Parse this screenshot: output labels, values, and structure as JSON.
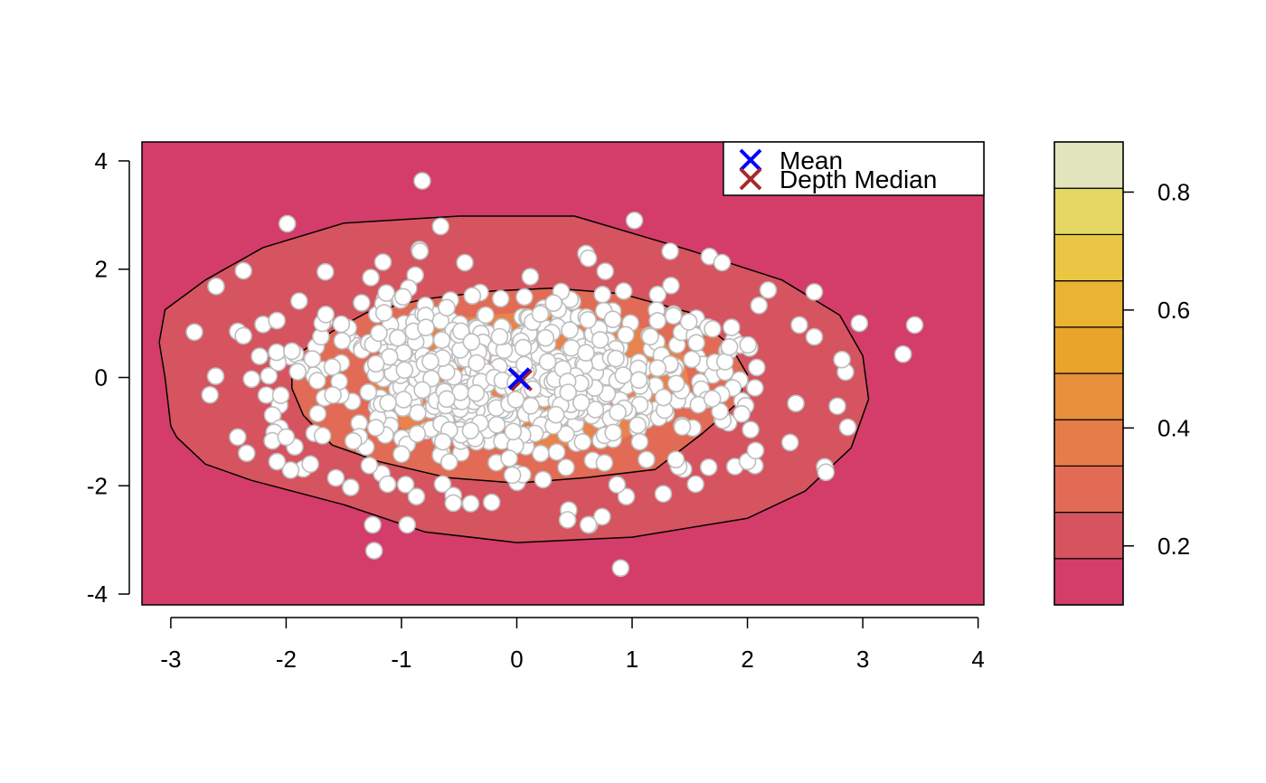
{
  "chart_data": {
    "type": "scatter",
    "title": "",
    "xlabel": "",
    "ylabel": "",
    "xlim": [
      -3.25,
      4.05
    ],
    "ylim": [
      -4.2,
      4.35
    ],
    "x_ticks": [
      -3,
      -2,
      -1,
      0,
      1,
      2,
      3,
      4
    ],
    "y_ticks": [
      -4,
      -2,
      0,
      2,
      4
    ],
    "x_tick_labels": [
      "-3",
      "-2",
      "-1",
      "0",
      "1",
      "2",
      "3",
      "4"
    ],
    "y_tick_labels": [
      "-4",
      "-2",
      "0",
      "2",
      "4"
    ],
    "grid": false,
    "background_color": "#D43D69",
    "point_fill": "#FFFFFF",
    "point_stroke": "#BEBEBE",
    "depth_contours": [
      {
        "level": 0.2,
        "color": "#D6545F",
        "outline": true,
        "polygon": [
          [
            -3.0,
            -0.9
          ],
          [
            -2.95,
            -1.1
          ],
          [
            -2.7,
            -1.6
          ],
          [
            -2.3,
            -1.9
          ],
          [
            -1.5,
            -2.35
          ],
          [
            -0.8,
            -2.85
          ],
          [
            0.0,
            -3.05
          ],
          [
            1.0,
            -2.95
          ],
          [
            2.0,
            -2.6
          ],
          [
            2.5,
            -2.1
          ],
          [
            2.9,
            -1.3
          ],
          [
            3.05,
            -0.4
          ],
          [
            3.0,
            0.4
          ],
          [
            2.8,
            1.15
          ],
          [
            2.3,
            1.8
          ],
          [
            1.5,
            2.35
          ],
          [
            0.5,
            2.98
          ],
          [
            -0.5,
            2.98
          ],
          [
            -1.5,
            2.85
          ],
          [
            -2.2,
            2.4
          ],
          [
            -2.7,
            1.8
          ],
          [
            -3.05,
            1.25
          ],
          [
            -3.1,
            0.65
          ],
          [
            -3.05,
            0.0
          ]
        ]
      },
      {
        "level": 0.25,
        "color": "#E26B55",
        "outline": true,
        "polygon": [
          [
            -1.95,
            0.3
          ],
          [
            -1.85,
            0.5
          ],
          [
            -1.6,
            0.85
          ],
          [
            -1.3,
            1.2
          ],
          [
            -0.8,
            1.45
          ],
          [
            -0.2,
            1.6
          ],
          [
            0.3,
            1.65
          ],
          [
            0.9,
            1.55
          ],
          [
            1.5,
            1.2
          ],
          [
            1.85,
            0.6
          ],
          [
            2.0,
            0.05
          ],
          [
            1.9,
            -0.5
          ],
          [
            1.6,
            -1.05
          ],
          [
            1.2,
            -1.7
          ],
          [
            0.6,
            -1.85
          ],
          [
            0.0,
            -1.95
          ],
          [
            -0.6,
            -1.85
          ],
          [
            -1.2,
            -1.55
          ],
          [
            -1.6,
            -1.25
          ],
          [
            -1.85,
            -0.7
          ],
          [
            -1.95,
            -0.2
          ]
        ]
      },
      {
        "level": 0.3,
        "color": "#E8834D",
        "outline": false,
        "polygon": [
          [
            -1.3,
            -0.3
          ],
          [
            -1.2,
            0.35
          ],
          [
            -0.95,
            0.85
          ],
          [
            -0.5,
            1.1
          ],
          [
            0.0,
            1.2
          ],
          [
            0.6,
            1.15
          ],
          [
            1.1,
            0.9
          ],
          [
            1.45,
            0.4
          ],
          [
            1.5,
            -0.2
          ],
          [
            1.3,
            -0.75
          ],
          [
            0.9,
            -1.15
          ],
          [
            0.3,
            -1.3
          ],
          [
            -0.3,
            -1.3
          ],
          [
            -0.8,
            -1.1
          ],
          [
            -1.15,
            -0.8
          ]
        ]
      }
    ],
    "colorbar": {
      "min": 0.1,
      "max": 0.885,
      "ticks": [
        0.2,
        0.4,
        0.6,
        0.8
      ],
      "tick_labels": [
        "0.2",
        "0.4",
        "0.6",
        "0.8"
      ],
      "bins": [
        {
          "from": 0.1,
          "to": 0.1785,
          "color": "#D43D69"
        },
        {
          "from": 0.1785,
          "to": 0.257,
          "color": "#D6545F"
        },
        {
          "from": 0.257,
          "to": 0.3355,
          "color": "#E26B55"
        },
        {
          "from": 0.3355,
          "to": 0.414,
          "color": "#E67D48"
        },
        {
          "from": 0.414,
          "to": 0.4925,
          "color": "#E8903C"
        },
        {
          "from": 0.4925,
          "to": 0.571,
          "color": "#E9A42C"
        },
        {
          "from": 0.571,
          "to": 0.6495,
          "color": "#EAB333"
        },
        {
          "from": 0.6495,
          "to": 0.728,
          "color": "#E9C643"
        },
        {
          "from": 0.728,
          "to": 0.8065,
          "color": "#E5D764"
        },
        {
          "from": 0.8065,
          "to": 0.885,
          "color": "#E2E5BC"
        }
      ]
    },
    "legend": {
      "position": "top-right",
      "items": [
        {
          "label": "Mean",
          "marker": "x",
          "color": "#0000FF"
        },
        {
          "label": "Depth Median",
          "marker": "x",
          "color": "#A52A2A"
        }
      ]
    },
    "mean": [
      0.02,
      -0.02
    ],
    "depth_median": [
      0.04,
      -0.05
    ],
    "outer_points": [
      [
        -0.82,
        3.63
      ],
      [
        1.02,
        2.9
      ],
      [
        -1.99,
        2.84
      ],
      [
        -0.66,
        2.79
      ],
      [
        -2.37,
        1.97
      ],
      [
        0.9,
        -3.52
      ],
      [
        -1.25,
        -2.72
      ],
      [
        -0.95,
        -2.72
      ],
      [
        0.63,
        -2.72
      ],
      [
        0.74,
        -2.57
      ],
      [
        2.97,
        1.0
      ],
      [
        3.45,
        0.97
      ],
      [
        3.35,
        0.43
      ],
      [
        2.85,
        0.1
      ],
      [
        2.58,
        0.75
      ],
      [
        2.87,
        -0.92
      ],
      [
        2.67,
        -1.65
      ],
      [
        2.68,
        -1.75
      ],
      [
        2.37,
        -1.2
      ],
      [
        2.42,
        -0.48
      ],
      [
        -2.66,
        -0.32
      ],
      [
        -2.42,
        0.85
      ],
      [
        -2.37,
        0.77
      ],
      [
        -2.42,
        -1.1
      ],
      [
        -2.23,
        0.39
      ],
      [
        -2.2,
        0.98
      ],
      [
        -2.08,
        1.05
      ],
      [
        -2.12,
        -1.17
      ],
      [
        -2.0,
        -1.1
      ],
      [
        -2.3,
        -0.03
      ],
      [
        -2.15,
        0.03
      ],
      [
        -1.79,
        -1.6
      ],
      [
        -1.44,
        -2.03
      ],
      [
        -1.12,
        -1.97
      ],
      [
        -0.87,
        -2.2
      ],
      [
        0.95,
        -2.2
      ],
      [
        1.27,
        -2.15
      ],
      [
        2.0,
        -1.55
      ],
      [
        2.07,
        -1.35
      ],
      [
        1.78,
        2.12
      ],
      [
        1.33,
        2.33
      ],
      [
        2.58,
        1.58
      ],
      [
        0.6,
        2.29
      ],
      [
        0.62,
        2.2
      ],
      [
        -0.84,
        2.33
      ],
      [
        -1.16,
        2.13
      ],
      [
        -1.66,
        1.95
      ],
      [
        2.1,
        1.33
      ],
      [
        2.45,
        0.97
      ],
      [
        -0.45,
        2.12
      ],
      [
        0.62,
        -2.72
      ],
      [
        -0.55,
        -2.18
      ],
      [
        -0.4,
        -2.33
      ],
      [
        -0.55,
        -2.32
      ],
      [
        0.45,
        -2.45
      ],
      [
        0.44,
        -2.63
      ],
      [
        1.55,
        -1.97
      ],
      [
        0.87,
        -1.98
      ],
      [
        2.78,
        -0.53
      ],
      [
        2.82,
        0.33
      ]
    ],
    "cloud": {
      "count": 680,
      "mean": [
        0.0,
        0.0
      ],
      "sd": [
        1.0,
        0.8
      ],
      "seed": 7
    }
  }
}
